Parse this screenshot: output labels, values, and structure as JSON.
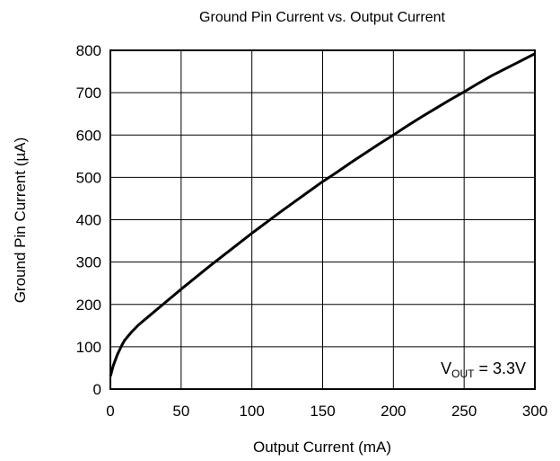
{
  "chart_data": {
    "type": "line",
    "title": "Ground Pin Current vs. Output Current",
    "xlabel": "Output Current (mA)",
    "ylabel": "Ground Pin Current (µA)",
    "xlim": [
      0,
      300
    ],
    "ylim": [
      0,
      800
    ],
    "x_ticks": [
      0,
      50,
      100,
      150,
      200,
      250,
      300
    ],
    "y_ticks": [
      0,
      100,
      200,
      300,
      400,
      500,
      600,
      700,
      800
    ],
    "grid": true,
    "annotation": {
      "main": "V",
      "subscript": "OUT",
      "value": " = 3.3V"
    },
    "series": [
      {
        "color": "#000000",
        "x": [
          0,
          2,
          5,
          8,
          10,
          15,
          20,
          30,
          40,
          50,
          60,
          70,
          80,
          90,
          100,
          110,
          120,
          130,
          140,
          150,
          160,
          170,
          180,
          190,
          200,
          210,
          220,
          230,
          240,
          250,
          260,
          270,
          280,
          290,
          300
        ],
        "y": [
          30,
          55,
          82,
          103,
          115,
          135,
          152,
          180,
          208,
          236,
          263,
          290,
          316,
          342,
          368,
          393,
          418,
          442,
          466,
          490,
          512,
          535,
          557,
          579,
          600,
          622,
          643,
          663,
          683,
          702,
          722,
          741,
          758,
          775,
          792
        ]
      }
    ]
  }
}
